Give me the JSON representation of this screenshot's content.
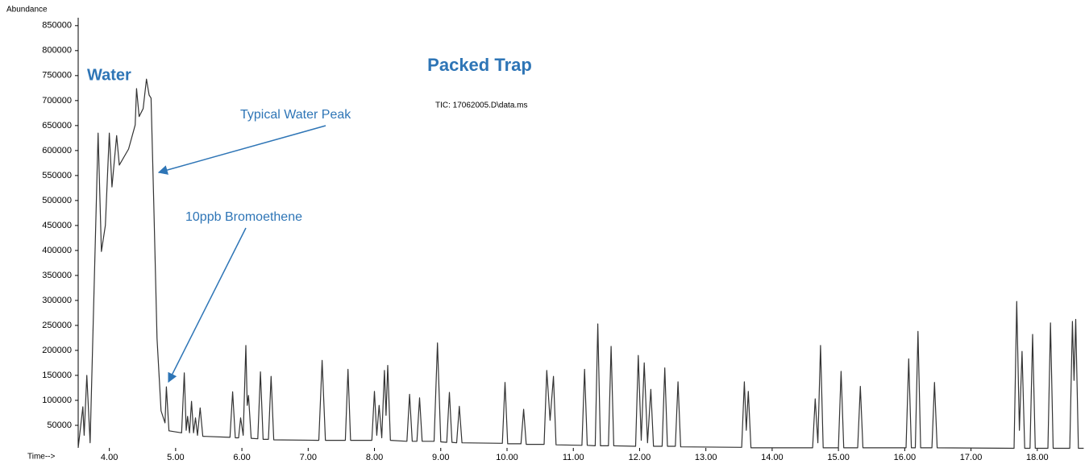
{
  "chart_data": {
    "type": "line",
    "title": "Packed Trap",
    "subtitle": "TIC: 17062005.D\\data.ms",
    "y_label": "Abundance",
    "x_label": "Time-->",
    "annotations": [
      "Water",
      "Typical Water Peak",
      "10ppb Bromoethene"
    ],
    "color": "#333333",
    "annotation_color": "#2e75b6",
    "xlim": [
      3.53,
      18.72
    ],
    "ylim": [
      0,
      861000
    ],
    "xticks": [
      {
        "value": 4,
        "label": "4.00"
      },
      {
        "value": 5,
        "label": "5.00"
      },
      {
        "value": 6,
        "label": "6.00"
      },
      {
        "value": 7,
        "label": "7.00"
      },
      {
        "value": 8,
        "label": "8.00"
      },
      {
        "value": 9,
        "label": "9.00"
      },
      {
        "value": 10,
        "label": "10.00"
      },
      {
        "value": 11,
        "label": "11.00"
      },
      {
        "value": 12,
        "label": "12.00"
      },
      {
        "value": 13,
        "label": "13.00"
      },
      {
        "value": 14,
        "label": "14.00"
      },
      {
        "value": 15,
        "label": "15.00"
      },
      {
        "value": 16,
        "label": "16.00"
      },
      {
        "value": 17,
        "label": "17.00"
      },
      {
        "value": 18,
        "label": "18.00"
      }
    ],
    "yticks": [
      50000,
      100000,
      150000,
      200000,
      250000,
      300000,
      350000,
      400000,
      450000,
      500000,
      550000,
      600000,
      650000,
      700000,
      750000,
      800000,
      850000
    ],
    "x": [
      3.53,
      3.6,
      3.62,
      3.66,
      3.71,
      3.83,
      3.88,
      3.94,
      4.0,
      4.04,
      4.11,
      4.15,
      4.29,
      4.39,
      4.41,
      4.45,
      4.51,
      4.56,
      4.6,
      4.63,
      4.67,
      4.72,
      4.78,
      4.84,
      4.86,
      4.9,
      5.09,
      5.13,
      5.16,
      5.18,
      5.21,
      5.24,
      5.27,
      5.3,
      5.33,
      5.37,
      5.41,
      5.82,
      5.86,
      5.9,
      5.95,
      5.98,
      6.02,
      6.06,
      6.08,
      6.1,
      6.14,
      6.24,
      6.28,
      6.32,
      6.4,
      6.44,
      6.48,
      7.16,
      7.21,
      7.26,
      7.56,
      7.6,
      7.64,
      7.96,
      8.0,
      8.035,
      8.07,
      8.11,
      8.15,
      8.175,
      8.2,
      8.24,
      8.49,
      8.53,
      8.57,
      8.64,
      8.68,
      8.72,
      8.9,
      8.95,
      9.0,
      9.09,
      9.13,
      9.17,
      9.24,
      9.28,
      9.32,
      9.93,
      9.97,
      10.01,
      10.21,
      10.25,
      10.29,
      10.56,
      10.6,
      10.65,
      10.7,
      10.74,
      11.13,
      11.17,
      11.21,
      11.33,
      11.37,
      11.41,
      11.53,
      11.57,
      11.61,
      11.94,
      11.98,
      12.025,
      12.07,
      12.12,
      12.17,
      12.21,
      12.34,
      12.38,
      12.42,
      12.54,
      12.58,
      12.62,
      13.54,
      13.58,
      13.61,
      13.64,
      13.68,
      14.61,
      14.65,
      14.69,
      14.73,
      14.77,
      15.0,
      15.04,
      15.08,
      15.29,
      15.33,
      15.37,
      16.02,
      16.06,
      16.1,
      16.16,
      16.2,
      16.24,
      16.41,
      16.45,
      16.49,
      17.65,
      17.69,
      17.73,
      17.77,
      17.81,
      17.89,
      17.93,
      17.97,
      18.16,
      18.2,
      18.24,
      18.49,
      18.53,
      18.555,
      18.58,
      18.62,
      18.7
    ],
    "values": [
      5000,
      87000,
      30000,
      150000,
      15000,
      635000,
      398000,
      450000,
      635000,
      527000,
      630000,
      571000,
      603000,
      651000,
      724000,
      668000,
      684000,
      743000,
      711000,
      705000,
      498000,
      224000,
      79000,
      55000,
      127000,
      39000,
      35000,
      155000,
      40000,
      68000,
      35000,
      98000,
      35000,
      65000,
      30000,
      85000,
      28000,
      26000,
      117000,
      25000,
      25000,
      65000,
      30000,
      210000,
      90000,
      110000,
      24000,
      23000,
      157000,
      22000,
      22000,
      148000,
      21000,
      20000,
      180000,
      20000,
      20000,
      162000,
      20000,
      20000,
      118000,
      30000,
      90000,
      25000,
      160000,
      70000,
      170000,
      20000,
      18000,
      112000,
      18000,
      18000,
      105000,
      18000,
      18000,
      215000,
      17000,
      16000,
      116000,
      16000,
      15000,
      88000,
      15000,
      14000,
      136000,
      13000,
      13000,
      82000,
      12000,
      12000,
      160000,
      60000,
      148000,
      11000,
      10000,
      162000,
      10000,
      9000,
      253000,
      9000,
      9000,
      208000,
      9000,
      8000,
      190000,
      20000,
      175000,
      15000,
      122000,
      8000,
      8000,
      165000,
      8000,
      8000,
      137000,
      7000,
      6000,
      137000,
      40000,
      118000,
      5000,
      5000,
      103000,
      15000,
      210000,
      5000,
      5000,
      158000,
      5000,
      5000,
      128000,
      5000,
      5000,
      183000,
      5000,
      5000,
      238000,
      5000,
      5000,
      136000,
      5000,
      4000,
      298000,
      40000,
      198000,
      4000,
      4000,
      232000,
      4000,
      4000,
      255000,
      4000,
      4000,
      258000,
      140000,
      262000,
      4000,
      4000
    ]
  }
}
